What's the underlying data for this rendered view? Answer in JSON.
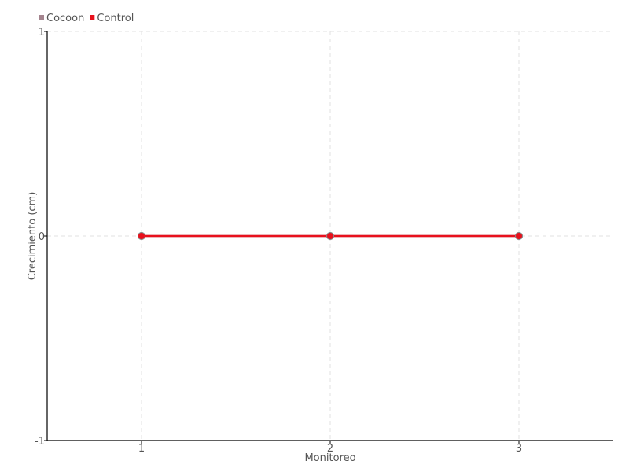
{
  "chart_data": {
    "type": "line",
    "title": "",
    "xlabel": "Monitoreo",
    "ylabel": "Crecimiento (cm)",
    "x": [
      1,
      2,
      3
    ],
    "xlim": [
      0.5,
      3.5
    ],
    "ylim": [
      -1,
      1
    ],
    "xticks": [
      "1",
      "2",
      "3"
    ],
    "yticks": [
      "-1",
      "0",
      "1"
    ],
    "grid": true,
    "legend_position": "top-left",
    "series": [
      {
        "name": "Cocoon",
        "values": [
          0,
          0,
          0
        ],
        "color": "#a4848e"
      },
      {
        "name": "Control",
        "values": [
          0,
          0,
          0
        ],
        "color": "#e8101c"
      }
    ]
  }
}
